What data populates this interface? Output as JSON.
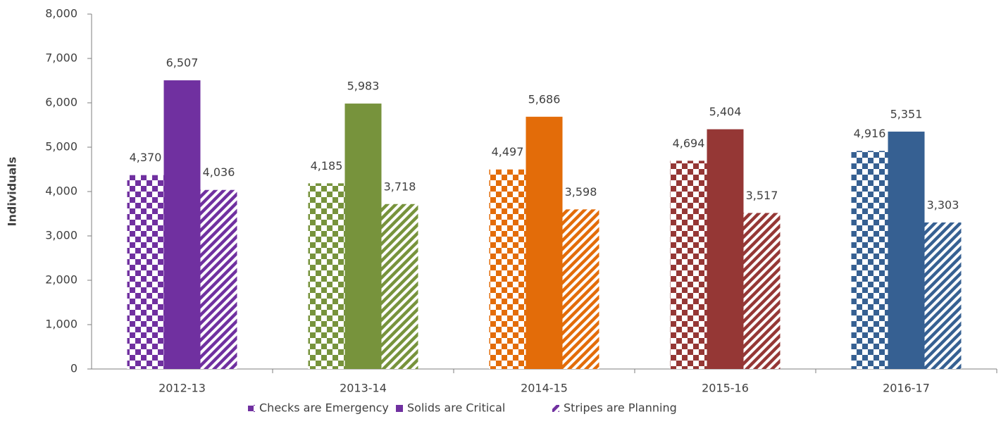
{
  "chart_data": {
    "type": "bar",
    "y_axis_label": "Individuals",
    "categories": [
      "2012-13",
      "2013-14",
      "2014-15",
      "2015-16",
      "2016-17"
    ],
    "category_colors": [
      "#7030a0",
      "#77933c",
      "#e36c09",
      "#953735",
      "#366092"
    ],
    "series": [
      {
        "name": "Checks are Emergency",
        "pattern": "checks",
        "values": [
          4370,
          4185,
          4497,
          4694,
          4916
        ],
        "value_labels": [
          "4,370",
          "4,185",
          "4,497",
          "4,694",
          "4,916"
        ]
      },
      {
        "name": "Solids are Critical",
        "pattern": "solid",
        "values": [
          6507,
          5983,
          5686,
          5404,
          5351
        ],
        "value_labels": [
          "6,507",
          "5,983",
          "5,686",
          "5,404",
          "5,351"
        ]
      },
      {
        "name": "Stripes are Planning",
        "pattern": "stripes",
        "values": [
          4036,
          3718,
          3598,
          3517,
          3303
        ],
        "value_labels": [
          "4,036",
          "3,718",
          "3,598",
          "3,517",
          "3,303"
        ]
      }
    ],
    "ylim": [
      0,
      8000
    ],
    "yticks": [
      0,
      {
        "value": 1000,
        "label": "1,000"
      },
      {
        "value": 2000,
        "label": "2,000"
      },
      {
        "value": 3000,
        "label": "3,000"
      },
      {
        "value": 4000,
        "label": "4,000"
      },
      {
        "value": 5000,
        "label": "5,000"
      },
      {
        "value": 6000,
        "label": "6,000"
      },
      {
        "value": 7000,
        "label": "7,000"
      },
      {
        "value": 8000,
        "label": "8,000"
      }
    ],
    "legend": "bottom"
  }
}
